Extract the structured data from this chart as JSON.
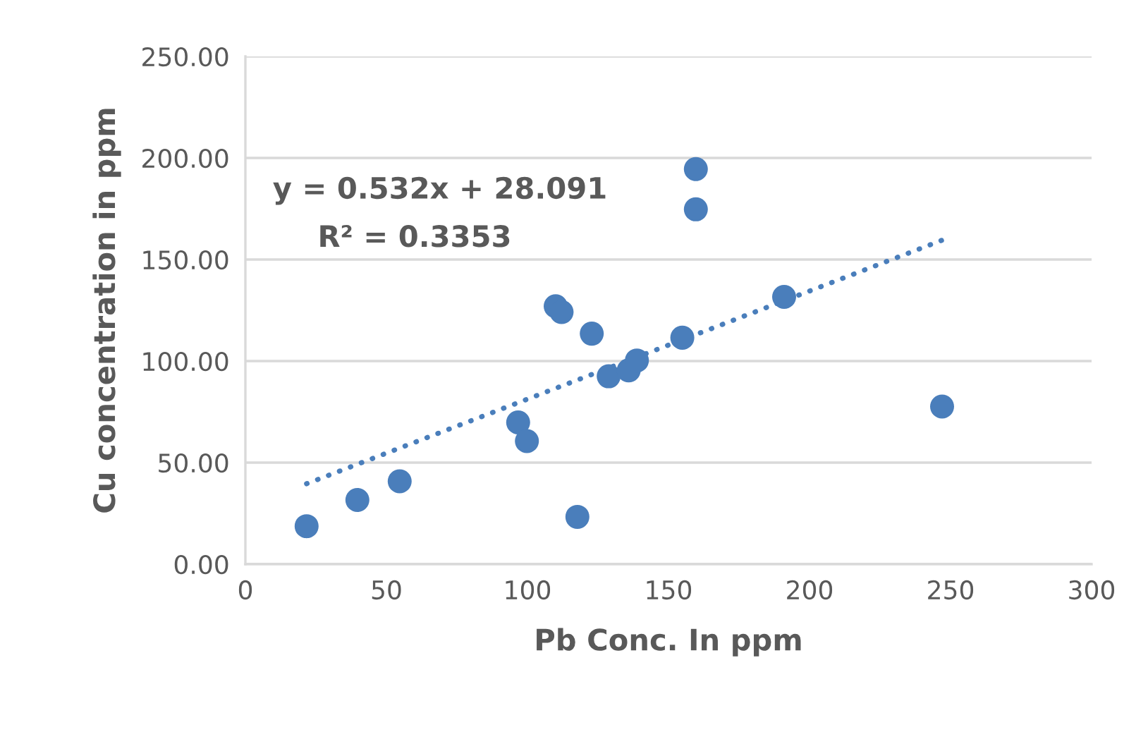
{
  "chart_data": {
    "type": "scatter",
    "xlabel": "Pb Conc. In ppm",
    "ylabel": "Cu concentration in ppm",
    "xlim": [
      0,
      300
    ],
    "xticks": [
      0,
      50,
      100,
      150,
      200,
      250,
      300
    ],
    "ylim": [
      0,
      250
    ],
    "yticks": [
      {
        "value": 0,
        "label": "0.00"
      },
      {
        "value": 50,
        "label": "50.00"
      },
      {
        "value": 100,
        "label": "100.00"
      },
      {
        "value": 150,
        "label": "150.00"
      },
      {
        "value": 200,
        "label": "200.00"
      },
      {
        "value": 250,
        "label": "250.00"
      }
    ],
    "grid": "y",
    "marker": "circle",
    "series": [
      {
        "color": "#4a7ebb",
        "x": [
          21.7,
          39.7,
          54.7,
          96.7,
          99.8,
          110.0,
          112.1,
          117.7,
          122.8,
          128.8,
          135.9,
          138.8,
          154.9,
          159.7,
          159.7,
          191.0,
          247.0
        ],
        "values": [
          18.7,
          31.6,
          40.8,
          69.8,
          60.6,
          127.0,
          124.1,
          23.3,
          113.5,
          92.5,
          95.4,
          100.3,
          111.5,
          194.5,
          174.7,
          131.6,
          77.6
        ]
      },
      {
        "type": "line",
        "color": "#4a7ebb",
        "line_style": "dotted",
        "marker": "none",
        "x": [
          21.7,
          247.0
        ],
        "values": [
          39.6,
          159.5
        ]
      }
    ],
    "annotations": [
      "y = 0.532x + 28.091",
      "R² = 0.3353"
    ]
  }
}
